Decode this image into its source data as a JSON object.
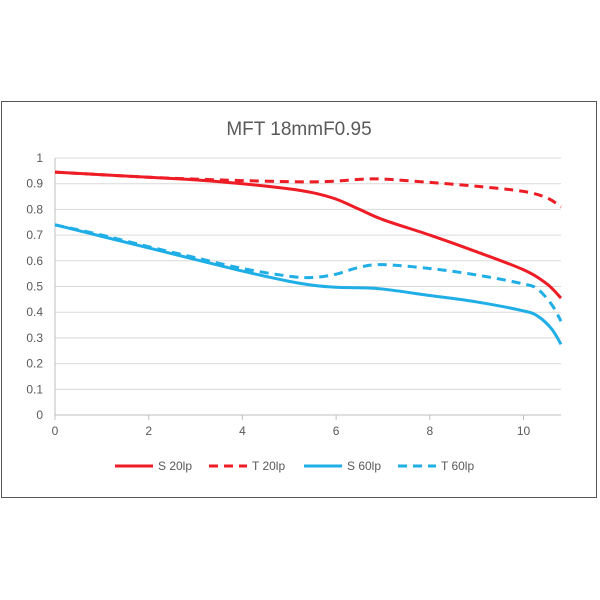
{
  "chart_data": {
    "type": "line",
    "title": "MFT 18mmF0.95",
    "xlabel": "",
    "ylabel": "",
    "xlim": [
      0,
      10.8
    ],
    "ylim": [
      0,
      1
    ],
    "x_ticks": [
      "0",
      "2",
      "4",
      "6",
      "8",
      "10"
    ],
    "y_ticks": [
      "0",
      "0.1",
      "0.2",
      "0.3",
      "0.4",
      "0.5",
      "0.6",
      "0.7",
      "0.8",
      "0.9",
      "1"
    ],
    "grid": "horizontal",
    "legend": "bottom",
    "series": [
      {
        "name": "S 20lp",
        "color": "#ee1c25",
        "dash": "solid",
        "x": [
          0,
          1,
          2,
          3,
          4,
          5,
          5.5,
          6,
          6.5,
          7,
          8,
          9,
          10,
          10.5,
          10.8
        ],
        "y": [
          0.945,
          0.935,
          0.925,
          0.915,
          0.9,
          0.88,
          0.865,
          0.84,
          0.8,
          0.76,
          0.7,
          0.635,
          0.565,
          0.51,
          0.455
        ]
      },
      {
        "name": "T 20lp",
        "color": "#ee1c25",
        "dash": "dashed",
        "x": [
          0,
          1,
          2,
          3,
          4,
          5,
          5.5,
          6,
          6.5,
          7,
          8,
          9,
          10,
          10.5,
          10.8
        ],
        "y": [
          0.945,
          0.935,
          0.925,
          0.918,
          0.912,
          0.908,
          0.907,
          0.91,
          0.917,
          0.918,
          0.905,
          0.89,
          0.87,
          0.845,
          0.81
        ]
      },
      {
        "name": "S 60lp",
        "color": "#1faee6",
        "dash": "solid",
        "x": [
          0,
          1,
          2,
          3,
          4,
          5,
          5.5,
          6,
          6.5,
          7,
          8,
          9,
          10,
          10.3,
          10.6,
          10.8
        ],
        "y": [
          0.74,
          0.695,
          0.65,
          0.605,
          0.56,
          0.52,
          0.505,
          0.497,
          0.495,
          0.49,
          0.465,
          0.44,
          0.405,
          0.385,
          0.335,
          0.275
        ]
      },
      {
        "name": "T 60lp",
        "color": "#1faee6",
        "dash": "dashed",
        "x": [
          0,
          1,
          2,
          3,
          4,
          5,
          5.5,
          6,
          6.5,
          7,
          8,
          9,
          10,
          10.3,
          10.6,
          10.8
        ],
        "y": [
          0.74,
          0.7,
          0.655,
          0.612,
          0.57,
          0.54,
          0.535,
          0.548,
          0.575,
          0.585,
          0.57,
          0.545,
          0.51,
          0.49,
          0.43,
          0.365
        ]
      }
    ]
  }
}
